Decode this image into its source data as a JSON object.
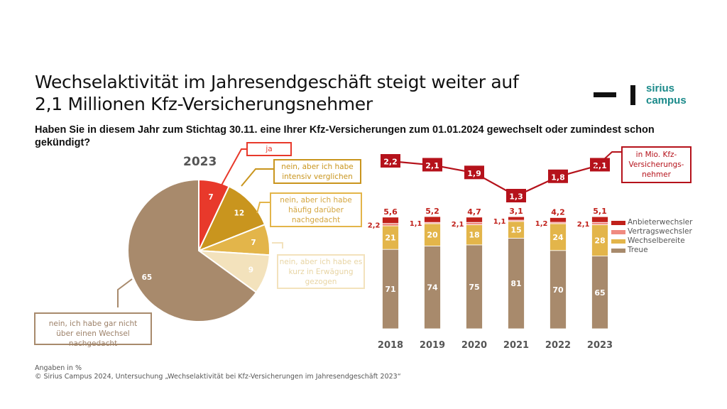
{
  "header": {
    "title_line1": "Wechselaktivität im Jahresendgeschäft steigt weiter auf",
    "title_line2": "2,1 Millionen Kfz-Versicherungsnehmer",
    "question": "Haben Sie in diesem Jahr zum Stichtag 30.11. eine Ihrer Kfz-Versicherungen zum 01.01.2024 gewechselt oder zumindest schon gekündigt?"
  },
  "logo": {
    "line1": "sirius",
    "line2": "campus",
    "color": "#1a8a8a"
  },
  "colors": {
    "anbieterwechsler": "#c0201a",
    "vertragswechsler": "#f08a80",
    "wechselbereite": "#e3b54a",
    "treue": "#a88a6c",
    "pie_ja": "#e8392b",
    "pie_intensiv": "#c9951e",
    "pie_haeufig": "#e3b54a",
    "pie_kurz": "#f3e2bc",
    "pie_nein": "#a88a6c",
    "line": "#b5121b"
  },
  "chart_data": [
    {
      "type": "pie",
      "title": "2023",
      "slices": [
        {
          "label": "ja",
          "value": 7
        },
        {
          "label": "nein, aber ich habe intensiv verglichen",
          "value": 12
        },
        {
          "label": "nein, aber ich habe häufig darüber nachgedacht",
          "value": 7
        },
        {
          "label": "nein, aber ich habe es kurz in Erwägung gezogen",
          "value": 9
        },
        {
          "label": "nein, ich habe gar nicht über einen Wechsel nachgedacht",
          "value": 65
        }
      ],
      "unit": "Angaben in %"
    },
    {
      "type": "bar",
      "stacked": true,
      "categories": [
        "2018",
        "2019",
        "2020",
        "2021",
        "2022",
        "2023"
      ],
      "series": [
        {
          "name": "Treue",
          "values": [
            71,
            74,
            75,
            81,
            70,
            65
          ]
        },
        {
          "name": "Wechselbereite",
          "values": [
            21,
            20,
            18,
            15,
            24,
            28
          ]
        },
        {
          "name": "Vertragswechsler",
          "values": [
            2.2,
            1.1,
            2.1,
            1.1,
            1.2,
            2.1
          ]
        },
        {
          "name": "Anbieterwechsler",
          "values": [
            5.6,
            5.2,
            4.7,
            3.1,
            4.2,
            5.1
          ]
        }
      ],
      "labels": {
        "Treue": [
          "71",
          "74",
          "75",
          "81",
          "70",
          "65"
        ],
        "Wechselbereite": [
          "21",
          "20",
          "18",
          "15",
          "24",
          "28"
        ],
        "Vertragswechsler": [
          "2,2",
          "1,1",
          "2,1",
          "1,1",
          "1,2",
          "2,1"
        ],
        "Anbieterwechsler": [
          "5,6",
          "5,2",
          "4,7",
          "3,1",
          "4,2",
          "5,1"
        ]
      },
      "legend": [
        "Anbieterwechsler",
        "Vertragswechsler",
        "Wechselbereite",
        "Treue"
      ],
      "legend_position": "right",
      "unit": "Angaben in %"
    },
    {
      "type": "line",
      "title": "in Mio. Kfz-Versicherungsnehmer",
      "categories": [
        "2018",
        "2019",
        "2020",
        "2021",
        "2022",
        "2023"
      ],
      "values": [
        2.2,
        2.1,
        1.9,
        1.3,
        1.8,
        2.1
      ],
      "labels": [
        "2,2",
        "2,1",
        "1,9",
        "1,3",
        "1,8",
        "2,1"
      ]
    }
  ],
  "pie_callouts": {
    "ja": "ja",
    "intensiv": "nein, aber ich habe intensiv verglichen",
    "haeufig": "nein, aber ich habe häufig darüber nachgedacht",
    "kurz": "nein, aber ich habe es kurz in Erwägung gezogen",
    "nein": "nein, ich habe gar nicht über einen Wechsel nachgedacht"
  },
  "line_unit_label": "in Mio. Kfz-Versicherungs-nehmer",
  "line_unit_lines": [
    "in Mio. Kfz-",
    "Versicherungs-",
    "nehmer"
  ],
  "footer": {
    "line1": "Angaben in %",
    "line2": "© Sirius Campus 2024, Untersuchung „Wechselaktivität bei Kfz-Versicherungen im Jahresendgeschäft 2023“"
  }
}
